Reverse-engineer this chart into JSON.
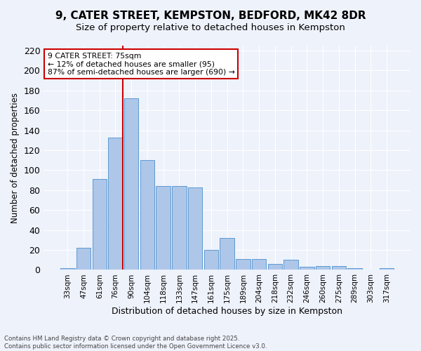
{
  "title_line1": "9, CATER STREET, KEMPSTON, BEDFORD, MK42 8DR",
  "title_line2": "Size of property relative to detached houses in Kempston",
  "xlabel": "Distribution of detached houses by size in Kempston",
  "ylabel": "Number of detached properties",
  "categories": [
    "33sqm",
    "47sqm",
    "61sqm",
    "76sqm",
    "90sqm",
    "104sqm",
    "118sqm",
    "133sqm",
    "147sqm",
    "161sqm",
    "175sqm",
    "189sqm",
    "204sqm",
    "218sqm",
    "232sqm",
    "246sqm",
    "260sqm",
    "275sqm",
    "289sqm",
    "303sqm",
    "317sqm"
  ],
  "values": [
    2,
    22,
    91,
    133,
    172,
    110,
    84,
    84,
    83,
    20,
    32,
    11,
    11,
    6,
    10,
    3,
    4,
    4,
    2,
    0,
    2
  ],
  "bar_color": "#aec6e8",
  "bar_edge_color": "#5b9bd5",
  "vline_x": 3.47,
  "vline_color": "#cc0000",
  "annotation_text": "9 CATER STREET: 75sqm\n← 12% of detached houses are smaller (95)\n87% of semi-detached houses are larger (690) →",
  "annotation_box_color": "#ffffff",
  "annotation_box_edge": "#cc0000",
  "ylim": [
    0,
    225
  ],
  "yticks": [
    0,
    20,
    40,
    60,
    80,
    100,
    120,
    140,
    160,
    180,
    200,
    220
  ],
  "background_color": "#eef2fb",
  "grid_color": "#ffffff",
  "footer_line1": "Contains HM Land Registry data © Crown copyright and database right 2025.",
  "footer_line2": "Contains public sector information licensed under the Open Government Licence v3.0."
}
